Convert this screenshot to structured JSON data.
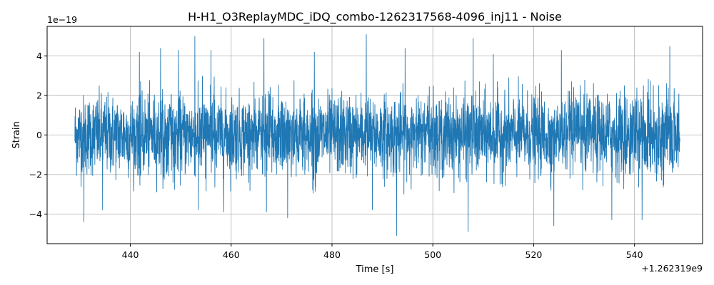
{
  "chart_data": {
    "type": "line",
    "title": "H-H1_O3ReplayMDC_iDQ_combo-1262317568-4096_inj11 - Noise",
    "xlabel": "Time [s]",
    "ylabel": "Strain",
    "x_offset_label": "+1.262319e9",
    "y_scale_label": "1e−19",
    "xlim": [
      423.5,
      553.5
    ],
    "ylim": [
      -5.5,
      5.5
    ],
    "x_ticks": [
      440,
      460,
      480,
      500,
      520,
      540
    ],
    "x_tick_labels": [
      "440",
      "460",
      "480",
      "500",
      "520",
      "540"
    ],
    "y_ticks": [
      -4,
      -2,
      0,
      2,
      4
    ],
    "y_tick_labels": [
      "−4",
      "−2",
      "0",
      "2",
      "4"
    ],
    "grid": true,
    "series": [
      {
        "color": "#1f77b4",
        "x_start": 429,
        "x_end": 549,
        "typical_amplitude": 1.0,
        "envelope_upper": 3.0,
        "envelope_lower": -3.0,
        "peaks": [
          {
            "x": 430.8,
            "y": -4.4
          },
          {
            "x": 434.5,
            "y": -3.8
          },
          {
            "x": 441.8,
            "y": 4.2
          },
          {
            "x": 446.0,
            "y": 4.4
          },
          {
            "x": 449.5,
            "y": 4.3
          },
          {
            "x": 452.8,
            "y": 5.0
          },
          {
            "x": 453.5,
            "y": -3.8
          },
          {
            "x": 456.0,
            "y": 4.3
          },
          {
            "x": 458.5,
            "y": -3.9
          },
          {
            "x": 466.5,
            "y": 4.9
          },
          {
            "x": 467.0,
            "y": -3.9
          },
          {
            "x": 471.2,
            "y": -4.2
          },
          {
            "x": 476.5,
            "y": 4.2
          },
          {
            "x": 486.8,
            "y": 5.1
          },
          {
            "x": 488.0,
            "y": -3.8
          },
          {
            "x": 492.8,
            "y": -5.1
          },
          {
            "x": 494.5,
            "y": 4.4
          },
          {
            "x": 507.0,
            "y": -4.9
          },
          {
            "x": 508.0,
            "y": 4.9
          },
          {
            "x": 512.0,
            "y": 4.1
          },
          {
            "x": 524.0,
            "y": -4.6
          },
          {
            "x": 525.5,
            "y": 4.3
          },
          {
            "x": 535.5,
            "y": -4.3
          },
          {
            "x": 541.5,
            "y": -4.3
          },
          {
            "x": 547.0,
            "y": 4.5
          }
        ]
      }
    ]
  }
}
